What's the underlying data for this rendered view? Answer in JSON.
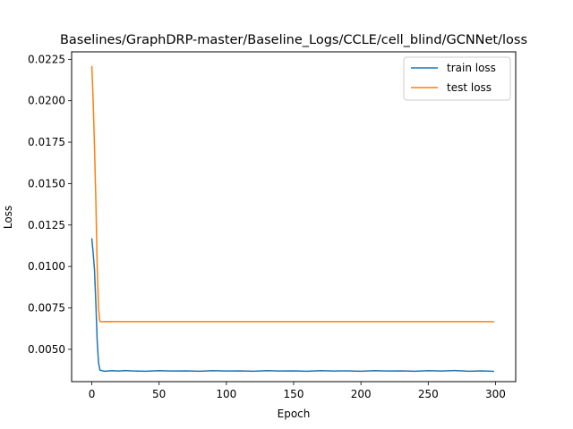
{
  "chart_data": {
    "type": "line",
    "title": "Baselines/GraphDRP-master/Baseline_Logs/CCLE/cell_blind/GCNNet/loss",
    "xlabel": "Epoch",
    "ylabel": "Loss",
    "xlim": [
      -15,
      315
    ],
    "ylim": [
      0.00305,
      0.02295
    ],
    "x_ticks": [
      0,
      50,
      100,
      150,
      200,
      250,
      300
    ],
    "x_tick_labels": [
      "0",
      "50",
      "100",
      "150",
      "200",
      "250",
      "300"
    ],
    "y_ticks": [
      0.005,
      0.0075,
      0.01,
      0.0125,
      0.015,
      0.0175,
      0.02,
      0.0225
    ],
    "y_tick_labels": [
      "0.0050",
      "0.0075",
      "0.0100",
      "0.0125",
      "0.0150",
      "0.0175",
      "0.0200",
      "0.0225"
    ],
    "legend_position": "top-right",
    "grid": false,
    "series": [
      {
        "name": "train loss",
        "color": "#1f77b4",
        "x": [
          0,
          1,
          2,
          3,
          4,
          5,
          6,
          8,
          10,
          15,
          20,
          25,
          30,
          40,
          50,
          60,
          70,
          80,
          90,
          100,
          110,
          120,
          130,
          140,
          150,
          160,
          170,
          180,
          190,
          200,
          210,
          220,
          230,
          240,
          250,
          260,
          270,
          280,
          290,
          299
        ],
        "y": [
          0.0117,
          0.0108,
          0.0098,
          0.0078,
          0.0055,
          0.0042,
          0.00375,
          0.0037,
          0.00368,
          0.00371,
          0.00369,
          0.00372,
          0.0037,
          0.00368,
          0.00371,
          0.00369,
          0.0037,
          0.00368,
          0.00371,
          0.00369,
          0.0037,
          0.00368,
          0.00371,
          0.00369,
          0.0037,
          0.00368,
          0.00371,
          0.00369,
          0.0037,
          0.00368,
          0.00371,
          0.00369,
          0.0037,
          0.00368,
          0.00371,
          0.00369,
          0.00372,
          0.00368,
          0.0037,
          0.00367
        ]
      },
      {
        "name": "test loss",
        "color": "#ff7f0e",
        "x": [
          0,
          1,
          2,
          3,
          4,
          5,
          6,
          8,
          10,
          20,
          50,
          100,
          150,
          200,
          250,
          299
        ],
        "y": [
          0.0221,
          0.02,
          0.0172,
          0.014,
          0.01,
          0.0075,
          0.00668,
          0.00667,
          0.00668,
          0.00667,
          0.00667,
          0.00667,
          0.00667,
          0.00667,
          0.00667,
          0.00667
        ]
      }
    ]
  }
}
